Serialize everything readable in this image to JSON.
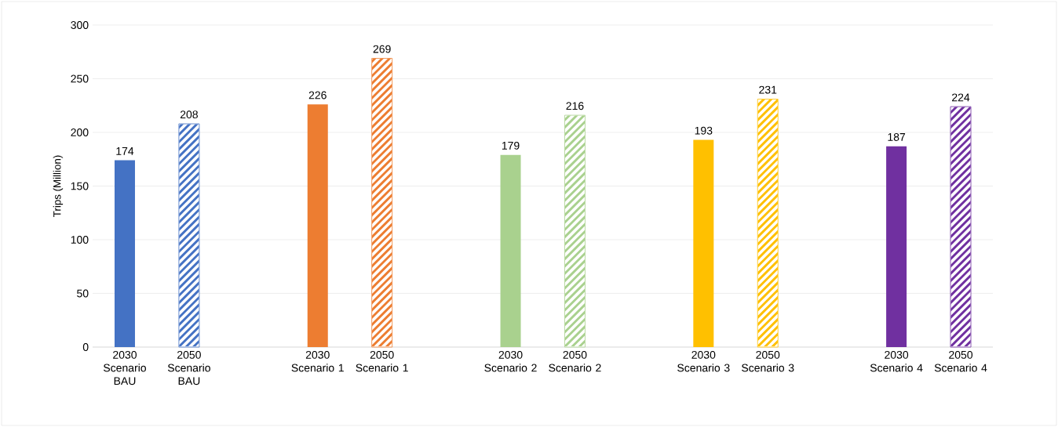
{
  "chart_data": {
    "type": "bar",
    "ylabel": "Trips (Million)",
    "categories": [
      "2030 Scenario BAU",
      "2050 Scenario BAU",
      null,
      "2030 Scenario 1",
      "2050 Scenario 1",
      null,
      "2030 Scenario 2",
      "2050 Scenario 2",
      null,
      "2030 Scenario 3",
      "2050 Scenario 3",
      null,
      "2030 Scenario 4",
      "2050 Scenario 4"
    ],
    "series": [
      {
        "values": [
          174,
          null,
          null,
          226,
          null,
          null,
          179,
          null,
          null,
          193,
          null,
          null,
          187,
          null
        ],
        "colors": [
          "#4472c4",
          null,
          null,
          "#ed7d31",
          null,
          null,
          "#a9d18e",
          null,
          null,
          "#ffc000",
          null,
          null,
          "#7030a0",
          null
        ],
        "value_labels": [
          "174",
          null,
          null,
          "226",
          null,
          null,
          "179",
          null,
          null,
          "193",
          null,
          null,
          "187",
          null
        ]
      },
      {
        "values": [
          null,
          208,
          null,
          null,
          269,
          null,
          null,
          216,
          null,
          null,
          231,
          null,
          null,
          224
        ],
        "colors": [
          null,
          "#4472c4",
          null,
          null,
          "#ed7d31",
          null,
          null,
          "#a9d18e",
          null,
          null,
          "#ffc000",
          null,
          null,
          "#7030a0"
        ],
        "value_labels": [
          null,
          "208",
          null,
          null,
          "269",
          null,
          null,
          "216",
          null,
          null,
          "231",
          null,
          null,
          "224"
        ]
      }
    ],
    "ylim": [
      0,
      300
    ],
    "yticks": [
      0,
      50,
      100,
      150,
      200,
      250,
      300
    ],
    "grid": "y"
  }
}
